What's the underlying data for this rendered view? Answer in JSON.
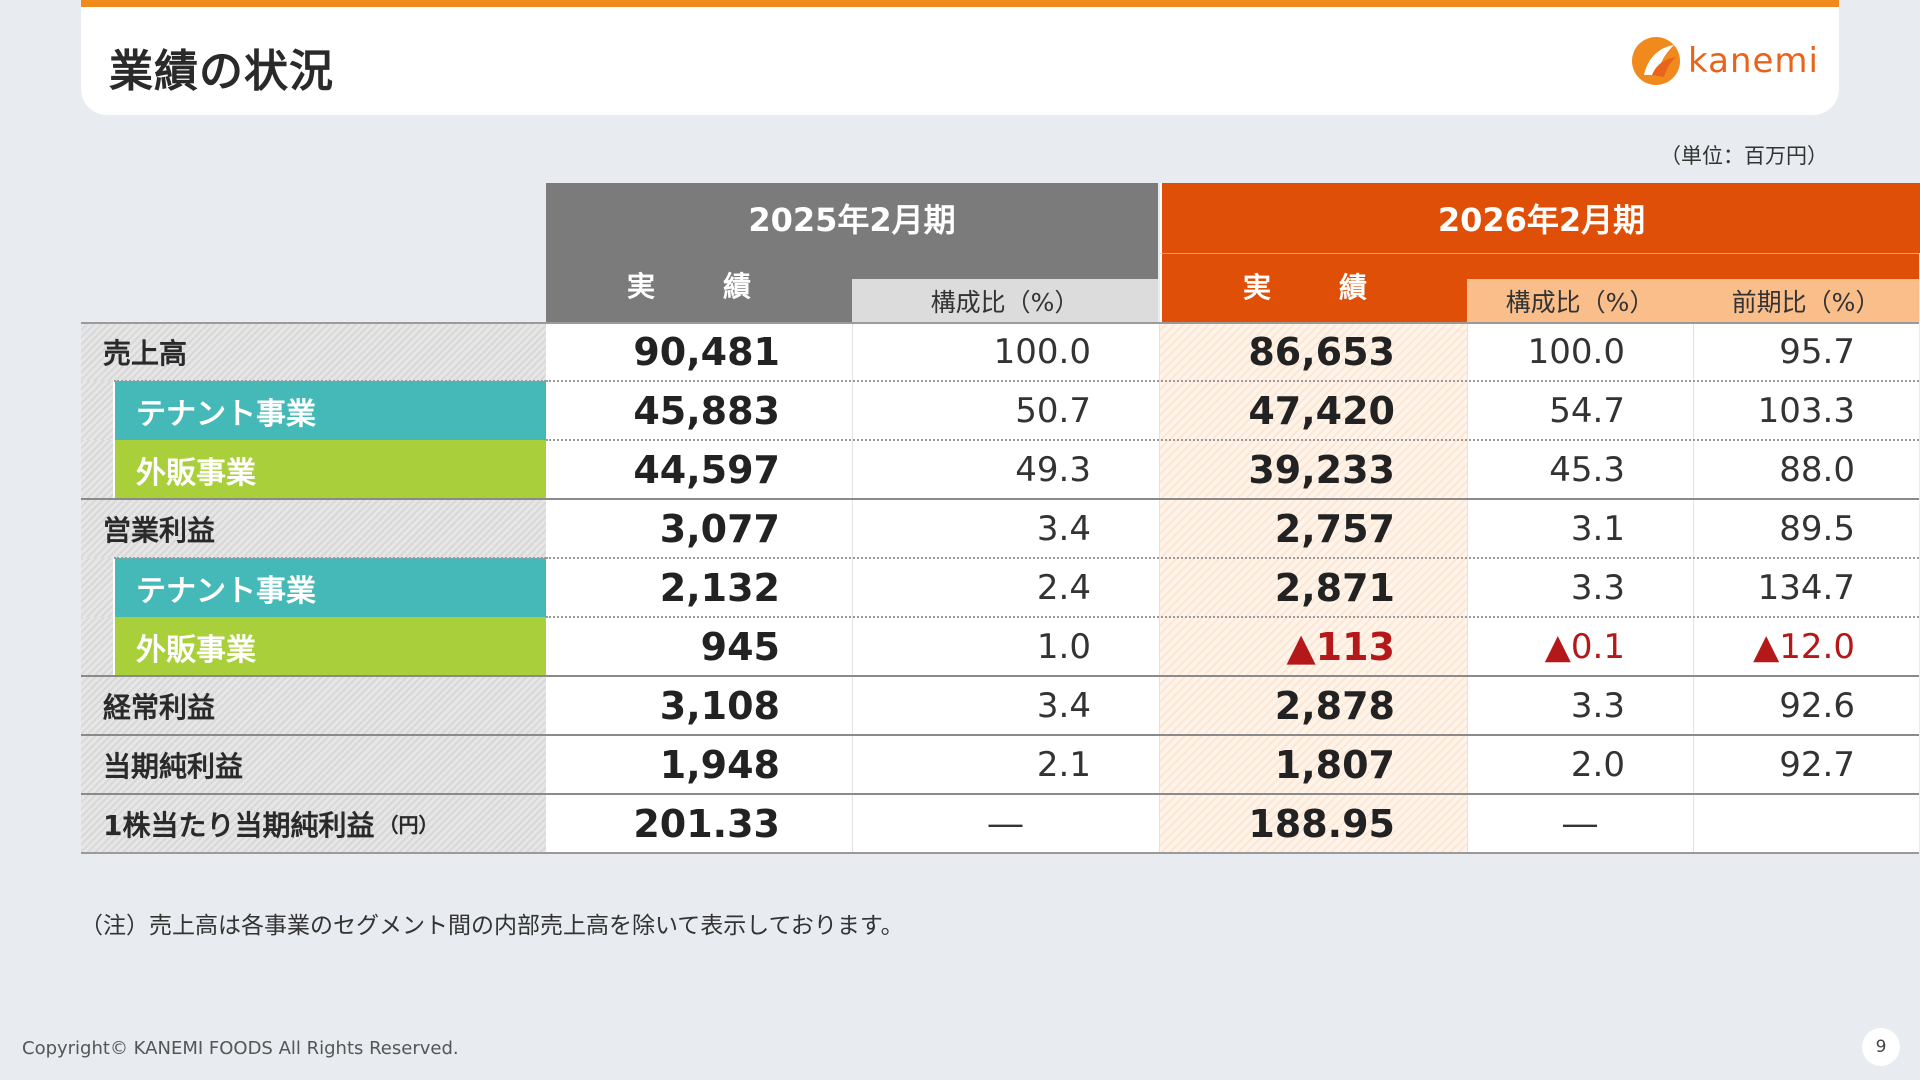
{
  "header": {
    "title": "業績の状況",
    "logo_text": "kanemi",
    "accent": "#f08a1c"
  },
  "unit_note": "（単位：百万円）",
  "columns": {
    "fy2025": "2025年2月期",
    "fy2026": "2026年2月期",
    "actual": "実　績",
    "ratio": "構成比（%）",
    "yoy": "前期比（%）"
  },
  "rows": [
    {
      "label": "売上高",
      "a": "90,481",
      "b": "100.0",
      "c": "86,653",
      "d": "100.0",
      "e": "95.7"
    },
    {
      "label": "テナント事業",
      "a": "45,883",
      "b": "50.7",
      "c": "47,420",
      "d": "54.7",
      "e": "103.3"
    },
    {
      "label": "外販事業",
      "a": "44,597",
      "b": "49.3",
      "c": "39,233",
      "d": "45.3",
      "e": "88.0"
    },
    {
      "label": "営業利益",
      "a": "3,077",
      "b": "3.4",
      "c": "2,757",
      "d": "3.1",
      "e": "89.5"
    },
    {
      "label": "テナント事業",
      "a": "2,132",
      "b": "2.4",
      "c": "2,871",
      "d": "3.3",
      "e": "134.7"
    },
    {
      "label": "外販事業",
      "a": "945",
      "b": "1.0",
      "c": "▲113",
      "d": "▲0.1",
      "e": "▲12.0"
    },
    {
      "label": "経常利益",
      "a": "3,108",
      "b": "3.4",
      "c": "2,878",
      "d": "3.3",
      "e": "92.6"
    },
    {
      "label": "当期純利益",
      "a": "1,948",
      "b": "2.1",
      "c": "1,807",
      "d": "2.0",
      "e": "92.7"
    },
    {
      "label": "1株当たり当期純利益",
      "label_suffix": "（円）",
      "a": "201.33",
      "b": "―",
      "c": "188.95",
      "d": "―",
      "e": ""
    }
  ],
  "footnote": "（注）売上高は各事業のセグメント間の内部売上高を除いて表示しております。",
  "copyright": "Copyright© KANEMI FOODS All Rights Reserved.",
  "page_number": "9"
}
